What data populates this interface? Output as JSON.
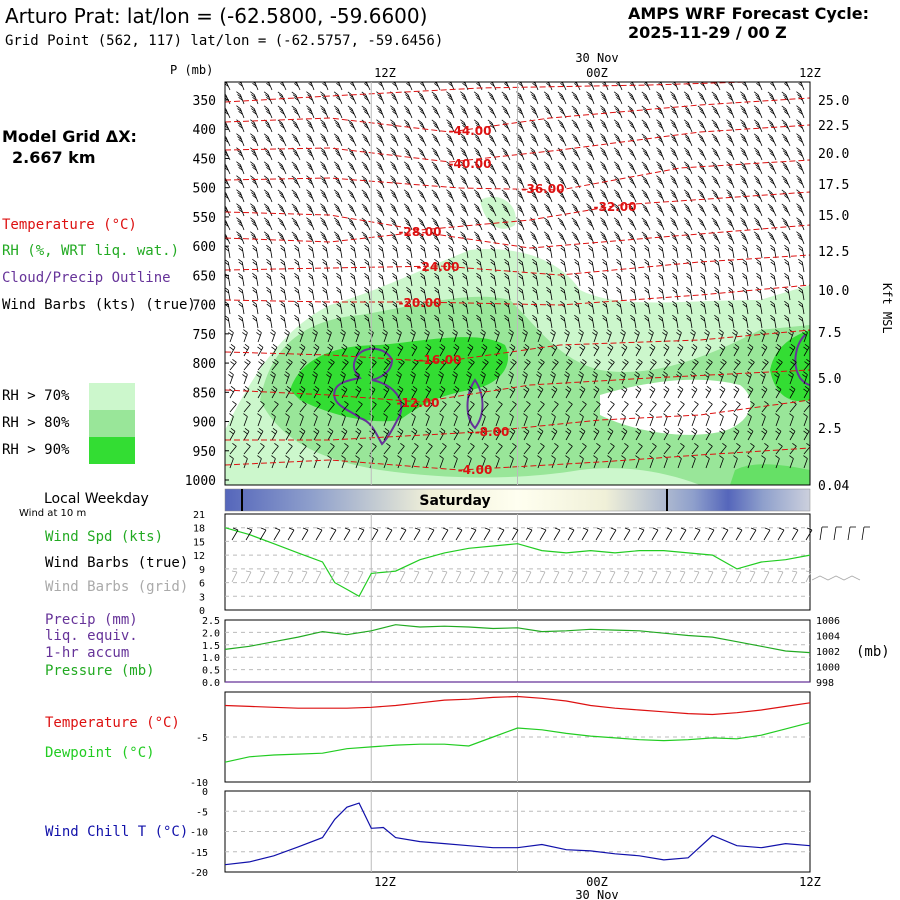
{
  "header": {
    "title": "Arturo Prat:  lat/lon = (-62.5800, -59.6600)",
    "grid_point": "Grid Point (562, 117) lat/lon = (-62.5757, -59.6456)",
    "cycle_line1": "AMPS WRF Forecast Cycle:",
    "cycle_line2": "2025-11-29 / 00  Z"
  },
  "left_panel": {
    "model_grid_label": "Model Grid ΔX:",
    "model_grid_value": "2.667 km",
    "legend_temperature": "Temperature (°C)",
    "legend_rh": "RH (%, WRT liq. wat.)",
    "legend_cloud": "Cloud/Precip Outline",
    "legend_wind": "Wind Barbs (kts) (true)",
    "rh_levels": [
      {
        "label": "RH > 70%",
        "color": "#ccf7cc"
      },
      {
        "label": "RH > 80%",
        "color": "#99e699"
      },
      {
        "label": "RH > 90%",
        "color": "#33dd33"
      }
    ],
    "local_weekday_label": "Local Weekday",
    "wind_10m_label": "Wind at 10 m"
  },
  "time_axis": {
    "top_date": "30 Nov",
    "bottom_date": "30 Nov",
    "ticks": [
      "12Z",
      "00Z",
      "12Z"
    ]
  },
  "weekday_bar": {
    "label": "Saturday"
  },
  "colors": {
    "temperature": "#dd1111",
    "rh": "#22aa22",
    "cloud": "#663399",
    "wind": "#000000",
    "wind_grid": "#aaaaaa",
    "precip": "#663399",
    "wind_chill": "#1111aa",
    "dewpoint": "#22cc22"
  },
  "chart_data": [
    {
      "id": "cross_section",
      "type": "heatmap",
      "description_axis": "Pressure (mb) vs forecast time with temperature isotherms",
      "ylabel_left": "P (mb)",
      "ylabel_right": "Kft MSL",
      "pressure_levels": [
        350,
        400,
        450,
        500,
        550,
        600,
        650,
        700,
        750,
        800,
        850,
        900,
        950,
        1000
      ],
      "height_ticks": [
        "25.0",
        "22.5",
        "20.0",
        "17.5",
        "15.0",
        "12.5",
        "10.0",
        "7.5",
        "5.0",
        "2.5",
        "0.04"
      ],
      "isotherm_labels": [
        "-44.00",
        "-40.00",
        "-36.00",
        "-32.00",
        "-28.00",
        "-24.00",
        "-20.00",
        "-16.00",
        "-12.00",
        "-8.00",
        "-4.00"
      ],
      "x_hours": [
        0,
        48
      ]
    },
    {
      "id": "wind_speed",
      "type": "line",
      "legend": [
        "Wind Spd (kts)",
        "Wind Barbs (true)",
        "Wind Barbs (grid)"
      ],
      "ylim": [
        0,
        21
      ],
      "y_ticks": [
        "21",
        "18",
        "15",
        "12",
        "9",
        "6",
        "3",
        "0"
      ],
      "x": [
        0,
        2,
        4,
        6,
        8,
        9,
        10,
        11,
        12,
        14,
        16,
        18,
        20,
        22,
        24,
        26,
        28,
        30,
        32,
        34,
        36,
        38,
        40,
        42,
        44,
        46,
        48
      ],
      "values": [
        18,
        16.5,
        14.5,
        12.5,
        10.5,
        6,
        4.5,
        3,
        8,
        8.5,
        11,
        12.5,
        13.5,
        14,
        14.5,
        13,
        12.5,
        13,
        12.5,
        13,
        13,
        12.5,
        12,
        9,
        10.5,
        11,
        12
      ]
    },
    {
      "id": "precip_pressure",
      "type": "line",
      "legend": [
        "Precip (mm)",
        "liq. equiv.",
        "1-hr accum",
        "Pressure (mb)"
      ],
      "ylim_left": [
        0,
        2.5
      ],
      "y_ticks_left": [
        "2.5",
        "2.0",
        "1.5",
        "1.0",
        "0.5",
        "0.0"
      ],
      "ylim_right": [
        998,
        1006
      ],
      "y_ticks_right": [
        "1006",
        "1004",
        "1002",
        "1000",
        "998"
      ],
      "right_unit": "(mb)",
      "x": [
        0,
        2,
        4,
        6,
        8,
        10,
        12,
        14,
        16,
        18,
        20,
        22,
        24,
        26,
        28,
        30,
        32,
        34,
        36,
        38,
        40,
        42,
        44,
        46,
        48
      ],
      "pressure": [
        1002.2,
        1002.6,
        1003.2,
        1003.8,
        1004.5,
        1004.1,
        1004.6,
        1005.4,
        1005.1,
        1005.2,
        1005.1,
        1004.9,
        1005.0,
        1004.5,
        1004.6,
        1004.8,
        1004.7,
        1004.6,
        1004.3,
        1004.0,
        1003.8,
        1003.2,
        1002.6,
        1002.0,
        1001.8
      ],
      "precip": [
        0,
        0,
        0,
        0,
        0,
        0,
        0,
        0,
        0,
        0,
        0,
        0,
        0,
        0,
        0,
        0,
        0,
        0,
        0,
        0,
        0,
        0,
        0,
        0,
        0
      ]
    },
    {
      "id": "temp_dew",
      "type": "line",
      "legend": [
        "Temperature (°C)",
        "Dewpoint (°C)"
      ],
      "ylim": [
        -10,
        0
      ],
      "y_ticks": [
        "-5",
        "-10"
      ],
      "x": [
        0,
        2,
        4,
        6,
        8,
        10,
        12,
        14,
        16,
        18,
        20,
        22,
        24,
        26,
        28,
        30,
        32,
        34,
        36,
        38,
        40,
        42,
        44,
        46,
        48
      ],
      "temperature": [
        -1.5,
        -1.6,
        -1.7,
        -1.8,
        -1.8,
        -1.8,
        -1.7,
        -1.5,
        -1.2,
        -0.9,
        -0.8,
        -0.6,
        -0.5,
        -0.7,
        -1.0,
        -1.5,
        -1.8,
        -2.0,
        -2.2,
        -2.4,
        -2.5,
        -2.3,
        -2.0,
        -1.6,
        -1.2
      ],
      "dewpoint": [
        -7.8,
        -7.2,
        -7.0,
        -6.9,
        -6.8,
        -6.3,
        -6.1,
        -5.9,
        -5.8,
        -5.8,
        -6.0,
        -5.0,
        -4.0,
        -4.2,
        -4.6,
        -4.9,
        -5.1,
        -5.3,
        -5.4,
        -5.3,
        -5.1,
        -5.2,
        -4.8,
        -4.1,
        -3.4
      ]
    },
    {
      "id": "wind_chill",
      "type": "line",
      "legend": [
        "Wind Chill T (°C)"
      ],
      "ylim": [
        -20,
        0
      ],
      "y_ticks": [
        "0",
        "-5",
        "-10",
        "-15",
        "-20"
      ],
      "x": [
        0,
        2,
        4,
        6,
        8,
        9,
        10,
        11,
        12,
        13,
        14,
        16,
        18,
        20,
        22,
        24,
        26,
        28,
        30,
        32,
        34,
        36,
        38,
        40,
        42,
        44,
        46,
        48
      ],
      "values": [
        -18.2,
        -17.5,
        -16.0,
        -13.8,
        -11.5,
        -7.0,
        -4.0,
        -3.0,
        -9.2,
        -9.0,
        -11.5,
        -12.5,
        -13.0,
        -13.5,
        -14.0,
        -14.0,
        -13.2,
        -14.5,
        -14.8,
        -15.5,
        -16.0,
        -17.0,
        -16.5,
        -11.0,
        -13.5,
        -14.0,
        -13.0,
        -13.5
      ]
    }
  ]
}
